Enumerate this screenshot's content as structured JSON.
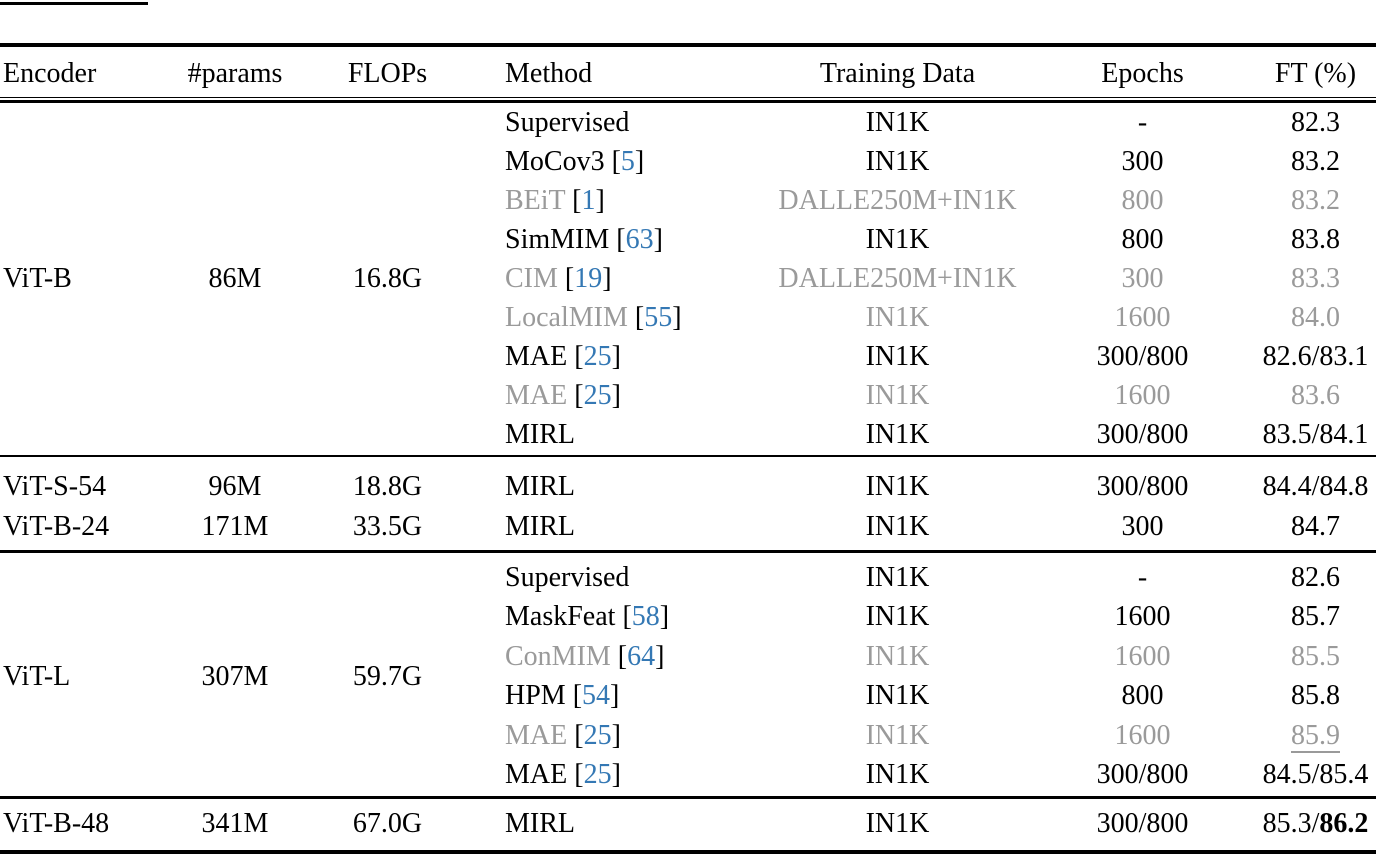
{
  "colors": {
    "text": "#000000",
    "dim_text": "#9a9a9a",
    "citation_link": "#3478b4",
    "rule": "#000000"
  },
  "table": {
    "columns": [
      {
        "label": "Encoder"
      },
      {
        "label": "#params"
      },
      {
        "label": "FLOPs"
      },
      {
        "label": "Method"
      },
      {
        "label": "Training Data"
      },
      {
        "label": "Epochs"
      },
      {
        "label": "FT (%)"
      }
    ],
    "sections": [
      {
        "group": {
          "encoder": "ViT-B",
          "params": "86M",
          "flops": "16.8G"
        },
        "rows": [
          {
            "method": "Supervised",
            "cite": null,
            "data": "IN1K",
            "epochs": "-",
            "ft": "82.3",
            "dim": false
          },
          {
            "method": "MoCov3",
            "cite": "5",
            "data": "IN1K",
            "epochs": "300",
            "ft": "83.2",
            "dim": false
          },
          {
            "method": "BEiT",
            "cite": "1",
            "data": "DALLE250M+IN1K",
            "epochs": "800",
            "ft": "83.2",
            "dim": true
          },
          {
            "method": "SimMIM",
            "cite": "63",
            "data": "IN1K",
            "epochs": "800",
            "ft": "83.8",
            "dim": false
          },
          {
            "method": "CIM",
            "cite": "19",
            "data": "DALLE250M+IN1K",
            "epochs": "300",
            "ft": "83.3",
            "dim": true
          },
          {
            "method": "LocalMIM",
            "cite": "55",
            "data": "IN1K",
            "epochs": "1600",
            "ft": "84.0",
            "dim": true
          },
          {
            "method": "MAE",
            "cite": "25",
            "data": "IN1K",
            "epochs": "300/800",
            "ft": "82.6/83.1",
            "dim": false
          },
          {
            "method": "MAE",
            "cite": "25",
            "data": "IN1K",
            "epochs": "1600",
            "ft": "83.6",
            "dim": true
          },
          {
            "method": "MIRL",
            "cite": null,
            "data": "IN1K",
            "epochs": "300/800",
            "ft": "83.5/84.1",
            "dim": false
          }
        ]
      },
      {
        "group": null,
        "rows": [
          {
            "encoder": "ViT-S-54",
            "params": "96M",
            "flops": "18.8G",
            "method": "MIRL",
            "cite": null,
            "data": "IN1K",
            "epochs": "300/800",
            "ft": "84.4/84.8",
            "dim": false
          },
          {
            "encoder": "ViT-B-24",
            "params": "171M",
            "flops": "33.5G",
            "method": "MIRL",
            "cite": null,
            "data": "IN1K",
            "epochs": "300",
            "ft": "84.7",
            "dim": false
          }
        ]
      },
      {
        "group": {
          "encoder": "ViT-L",
          "params": "307M",
          "flops": "59.7G"
        },
        "rows": [
          {
            "method": "Supervised",
            "cite": null,
            "data": "IN1K",
            "epochs": "-",
            "ft": "82.6",
            "dim": false
          },
          {
            "method": "MaskFeat",
            "cite": "58",
            "data": "IN1K",
            "epochs": "1600",
            "ft": "85.7",
            "dim": false
          },
          {
            "method": "ConMIM",
            "cite": "64",
            "data": "IN1K",
            "epochs": "1600",
            "ft": "85.5",
            "dim": true
          },
          {
            "method": "HPM",
            "cite": "54",
            "data": "IN1K",
            "epochs": "800",
            "ft": "85.8",
            "dim": false
          },
          {
            "method": "MAE",
            "cite": "25",
            "data": "IN1K",
            "epochs": "1600",
            "ft": "85.9",
            "ft_underline": true,
            "dim": true
          },
          {
            "method": "MAE",
            "cite": "25",
            "data": "IN1K",
            "epochs": "300/800",
            "ft": "84.5/85.4",
            "dim": false
          }
        ]
      },
      {
        "group": null,
        "rows": [
          {
            "encoder": "ViT-B-48",
            "params": "341M",
            "flops": "67.0G",
            "method": "MIRL",
            "cite": null,
            "data": "IN1K",
            "epochs": "300/800",
            "ft": "85.3/",
            "ft_bold": "86.2",
            "dim": false
          }
        ]
      }
    ]
  }
}
